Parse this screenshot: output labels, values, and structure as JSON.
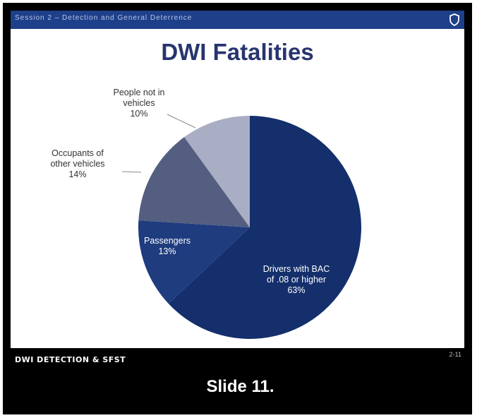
{
  "header": {
    "session_text": "Session 2 – Detection and General Deterrence",
    "logo_icon": "shield-icon"
  },
  "slide": {
    "title": "DWI Fatalities"
  },
  "footer": {
    "course": "DWI DETECTION & SFST",
    "page": "2-11"
  },
  "caption": "Slide 11.",
  "chart_data": {
    "type": "pie",
    "title": "DWI Fatalities",
    "start_angle_deg": 0,
    "direction": "clockwise",
    "slices": [
      {
        "label_lines": [
          "Drivers with BAC",
          "of .08 or higher",
          "63%"
        ],
        "value": 63,
        "color": "#142f6c"
      },
      {
        "label_lines": [
          "Passengers",
          "13%"
        ],
        "value": 13,
        "color": "#1f3c7f"
      },
      {
        "label_lines": [
          "Occupants of",
          "other vehicles",
          "14%"
        ],
        "value": 14,
        "color": "#545e80"
      },
      {
        "label_lines": [
          "People not in",
          "vehicles",
          "10%"
        ],
        "value": 10,
        "color": "#a9aec4"
      }
    ]
  }
}
